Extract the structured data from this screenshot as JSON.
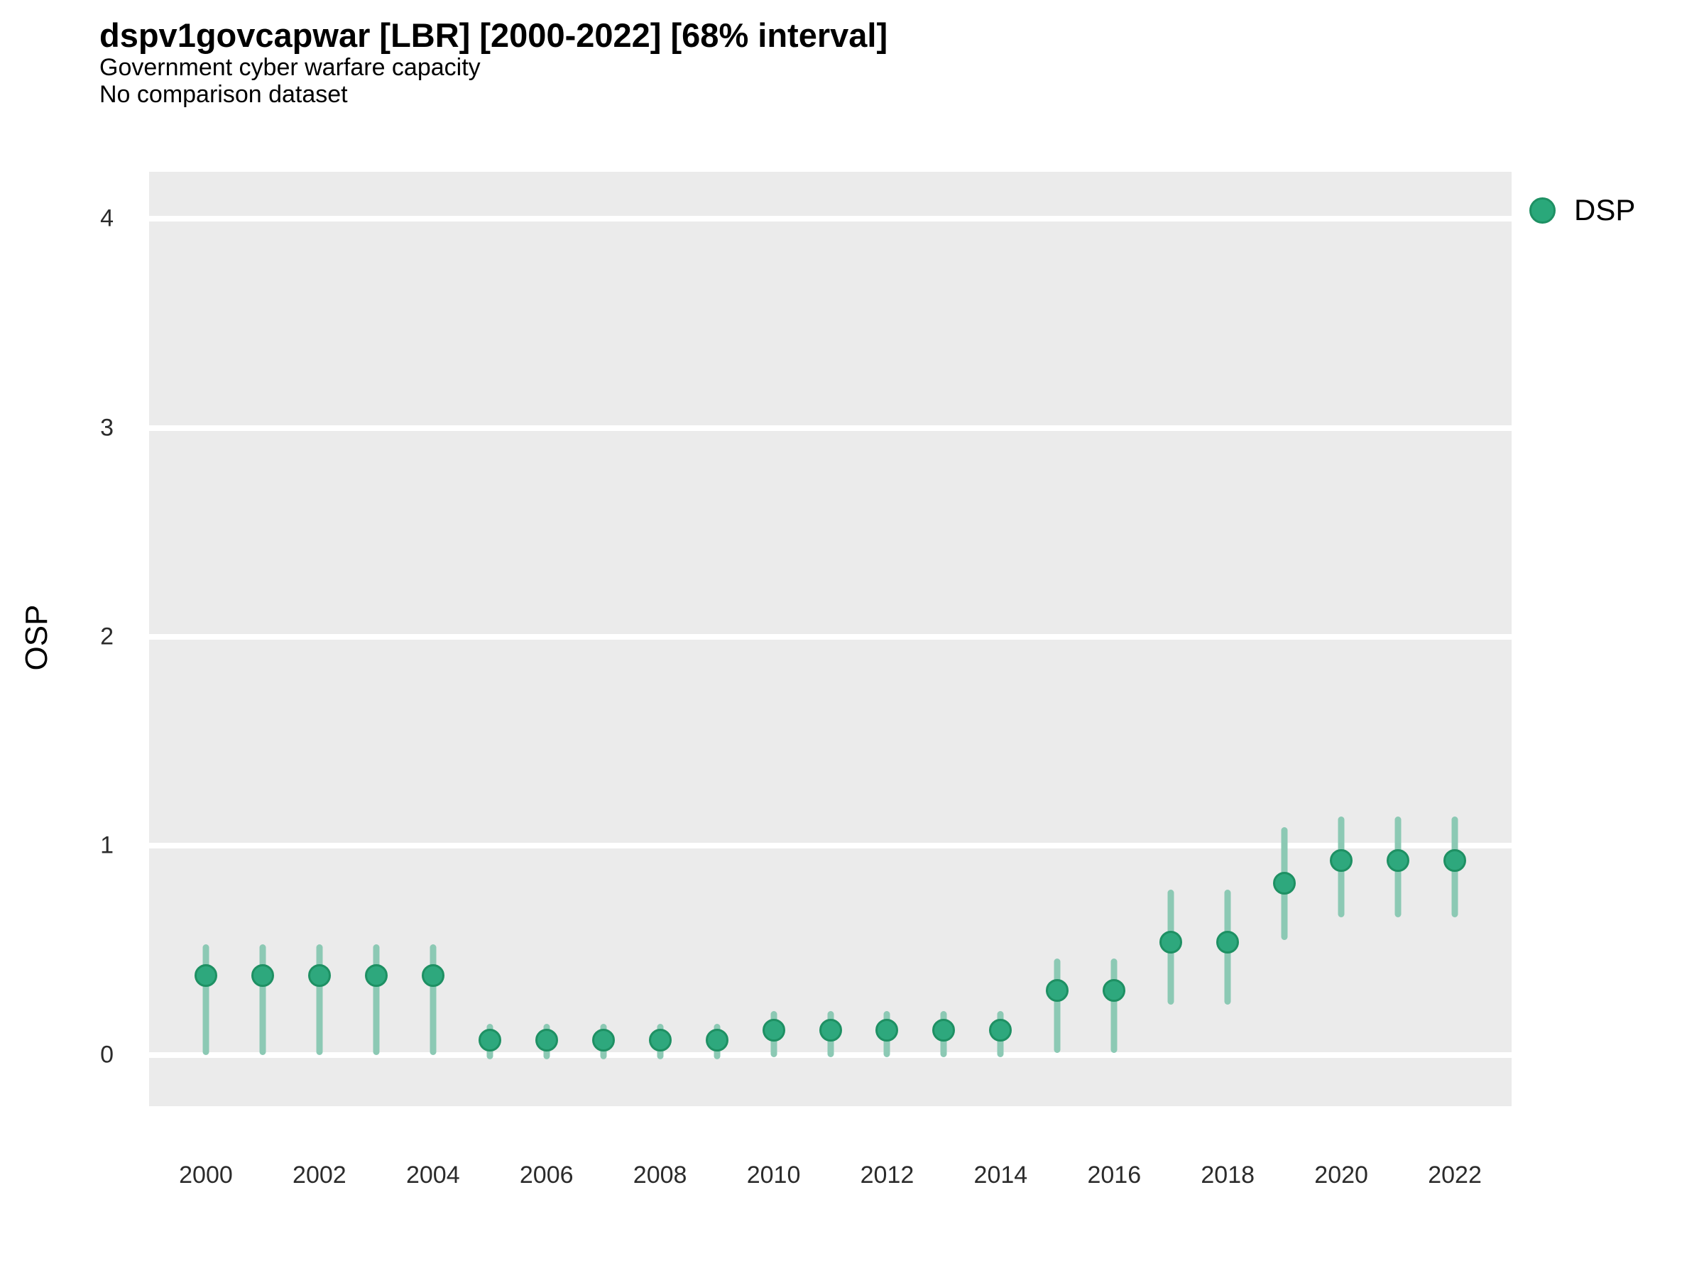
{
  "header": {
    "title": "dspv1govcapwar [LBR] [2000-2022] [68% interval]",
    "subtitle": "Government cyber warfare capacity",
    "subtitle2": "No comparison dataset"
  },
  "legend": {
    "position": "right",
    "items": [
      {
        "label": "DSP",
        "marker": "circle",
        "color": "#2AA87A"
      }
    ]
  },
  "colors": {
    "panel_background": "#EBEBEB",
    "gridline": "#FFFFFF",
    "point_fill": "#2EA87D",
    "point_border": "#1E9063",
    "interval_bar": "#8CC9B4",
    "tick_text": "#2B2B2B",
    "title_text": "#000000"
  },
  "chart_data": {
    "type": "scatter",
    "title": "dspv1govcapwar [LBR] [2000-2022] [68% interval]",
    "subtitle": "Government cyber warfare capacity",
    "note": "No comparison dataset",
    "xlabel": "",
    "ylabel": "OSP",
    "interval_level": "68%",
    "grid": "horizontal-major-only",
    "legend_position": "right",
    "x": [
      2000,
      2001,
      2002,
      2003,
      2004,
      2005,
      2006,
      2007,
      2008,
      2009,
      2010,
      2011,
      2012,
      2013,
      2014,
      2015,
      2016,
      2017,
      2018,
      2019,
      2020,
      2021,
      2022
    ],
    "series": [
      {
        "name": "DSP",
        "values": [
          0.38,
          0.38,
          0.38,
          0.38,
          0.38,
          0.07,
          0.07,
          0.07,
          0.07,
          0.07,
          0.12,
          0.12,
          0.12,
          0.12,
          0.12,
          0.31,
          0.31,
          0.54,
          0.54,
          0.82,
          0.93,
          0.93,
          0.93
        ],
        "lower": [
          0.0,
          0.0,
          0.0,
          0.0,
          0.0,
          -0.02,
          -0.02,
          -0.02,
          -0.02,
          -0.02,
          -0.01,
          -0.01,
          -0.01,
          -0.01,
          -0.01,
          0.01,
          0.01,
          0.24,
          0.24,
          0.55,
          0.66,
          0.66,
          0.66
        ],
        "upper": [
          0.53,
          0.53,
          0.53,
          0.53,
          0.53,
          0.15,
          0.15,
          0.15,
          0.15,
          0.15,
          0.21,
          0.21,
          0.21,
          0.21,
          0.21,
          0.46,
          0.46,
          0.79,
          0.79,
          1.09,
          1.14,
          1.14,
          1.14
        ]
      }
    ],
    "x_ticks": [
      2000,
      2002,
      2004,
      2006,
      2008,
      2010,
      2012,
      2014,
      2016,
      2018,
      2020,
      2022
    ],
    "y_ticks": [
      0,
      1,
      2,
      3,
      4
    ],
    "xlim": [
      1999,
      2023
    ],
    "ylim": [
      -0.245,
      4.225
    ]
  }
}
